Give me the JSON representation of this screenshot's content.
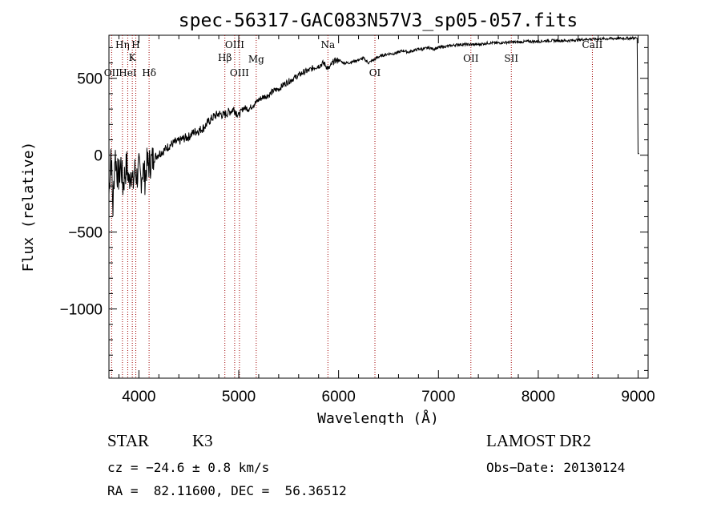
{
  "chart_data": {
    "type": "line",
    "title": "spec-56317-GAC083N57V3_sp05-057.fits",
    "xlabel": "Wavelength (Å)",
    "ylabel": "Flux (relative)",
    "xlim": [
      3700,
      9100
    ],
    "ylim": [
      -1450,
      780
    ],
    "xticks": [
      4000,
      5000,
      6000,
      7000,
      8000,
      9000
    ],
    "yticks": [
      -1000,
      -500,
      0,
      500
    ],
    "grid": false,
    "series": [
      {
        "x": [
          3700,
          3720,
          3740,
          3760,
          3780,
          3800,
          3820,
          3840,
          3860,
          3880,
          3900,
          3920,
          3940,
          3960,
          3980,
          4000,
          4020,
          4040,
          4060,
          4080,
          4100,
          4150,
          4200,
          4250,
          4300,
          4350,
          4400,
          4450,
          4500,
          4550,
          4600,
          4650,
          4700,
          4750,
          4800,
          4850,
          4900,
          4950,
          5000,
          5050,
          5100,
          5150,
          5200,
          5250,
          5300,
          5350,
          5400,
          5450,
          5500,
          5550,
          5600,
          5650,
          5700,
          5750,
          5800,
          5850,
          5900,
          5950,
          6000,
          6050,
          6100,
          6150,
          6200,
          6250,
          6300,
          6350,
          6400,
          6450,
          6500,
          6550,
          6600,
          6650,
          6700,
          6750,
          6800,
          6850,
          6900,
          6950,
          7000,
          7100,
          7200,
          7300,
          7400,
          7500,
          7600,
          7700,
          7800,
          7900,
          8000,
          8100,
          8200,
          8300,
          8400,
          8500,
          8600,
          8700,
          8800,
          8900,
          8950,
          8990,
          9000,
          9010
        ],
        "y": [
          -250,
          40,
          -350,
          20,
          -100,
          -150,
          -50,
          -200,
          -120,
          -60,
          -180,
          -80,
          -200,
          -100,
          -140,
          -90,
          -160,
          -80,
          -150,
          -60,
          -60,
          -20,
          10,
          30,
          60,
          80,
          90,
          110,
          120,
          150,
          160,
          180,
          220,
          250,
          270,
          260,
          280,
          300,
          260,
          310,
          300,
          330,
          360,
          380,
          390,
          420,
          430,
          460,
          480,
          500,
          520,
          540,
          550,
          570,
          580,
          600,
          560,
          610,
          620,
          600,
          600,
          610,
          620,
          630,
          600,
          620,
          640,
          650,
          660,
          660,
          670,
          680,
          670,
          680,
          690,
          690,
          700,
          690,
          700,
          710,
          720,
          720,
          720,
          730,
          730,
          735,
          735,
          740,
          740,
          745,
          745,
          745,
          750,
          755,
          755,
          758,
          760,
          760,
          762,
          762,
          10,
          10
        ]
      }
    ],
    "lines": [
      {
        "label": "OII",
        "x": 3727
      },
      {
        "label": "Hη",
        "x": 3835
      },
      {
        "label": "HeI",
        "x": 3888
      },
      {
        "label": "K",
        "x": 3934
      },
      {
        "label": "H",
        "x": 3969
      },
      {
        "label": "Hδ",
        "x": 4102
      },
      {
        "label": "Hβ",
        "x": 4861
      },
      {
        "label": "OIII",
        "x": 4959
      },
      {
        "label": "OIII",
        "x": 5007
      },
      {
        "label": "Mg",
        "x": 5175
      },
      {
        "label": "Na",
        "x": 5893
      },
      {
        "label": "OI",
        "x": 6364
      },
      {
        "label": "OII",
        "x": 7325
      },
      {
        "label": "SII",
        "x": 7730
      },
      {
        "label": "CaII",
        "x": 8542
      }
    ],
    "line_color": "#a00000",
    "series_color": "#000000"
  },
  "info": {
    "class": "STAR",
    "subclass": "K3",
    "survey": "LAMOST DR2",
    "cz": "cz = −24.6 ± 0.8 km/s",
    "obs_date": "Obs−Date: 20130124",
    "radec": "RA =  82.11600, DEC =  56.36512"
  }
}
